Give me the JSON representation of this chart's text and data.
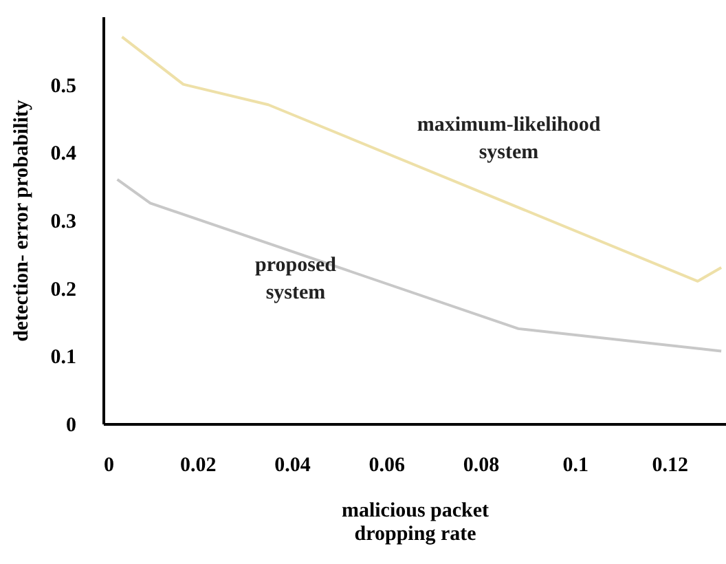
{
  "chart_data": {
    "type": "line",
    "xlabel": "malicious packet dropping rate",
    "ylabel": "detection- error probability",
    "xlim": [
      0,
      0.132
    ],
    "xticks": [
      0,
      0.02,
      0.04,
      0.06,
      0.08,
      0.1,
      0.12
    ],
    "ylim": [
      0,
      0.6
    ],
    "yticks": [
      0,
      0.1,
      0.2,
      0.3,
      0.4,
      0.5
    ],
    "grid": false,
    "legend": false,
    "series": [
      {
        "name": "maximum-likelihood system",
        "color": "#eee0a8",
        "x": [
          0.004,
          0.017,
          0.035,
          0.126,
          0.131
        ],
        "values": [
          0.57,
          0.5,
          0.47,
          0.21,
          0.23
        ]
      },
      {
        "name": "proposed system",
        "color": "#c8c8c8",
        "x": [
          0.003,
          0.01,
          0.088,
          0.131
        ],
        "values": [
          0.36,
          0.325,
          0.14,
          0.107
        ]
      }
    ]
  }
}
